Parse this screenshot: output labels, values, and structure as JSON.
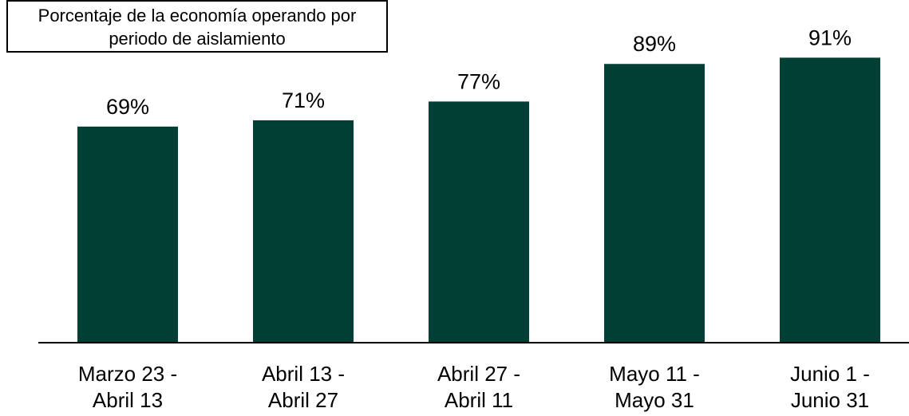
{
  "chart_data": {
    "type": "bar",
    "title": "Porcentaje de la economía operando por periodo de aislamiento",
    "categories": [
      [
        "Marzo 23 -",
        "Abril 13"
      ],
      [
        "Abril 13 -",
        "Abril 27"
      ],
      [
        "Abril 27 -",
        "Abril 11"
      ],
      [
        "Mayo 11 -",
        "Mayo 31"
      ],
      [
        "Junio 1 -",
        "Junio 31"
      ]
    ],
    "values": [
      69,
      71,
      77,
      89,
      91
    ],
    "value_labels": [
      "69%",
      "71%",
      "77%",
      "89%",
      "91%"
    ],
    "color": "#013f35",
    "ylim": [
      0,
      100
    ]
  }
}
